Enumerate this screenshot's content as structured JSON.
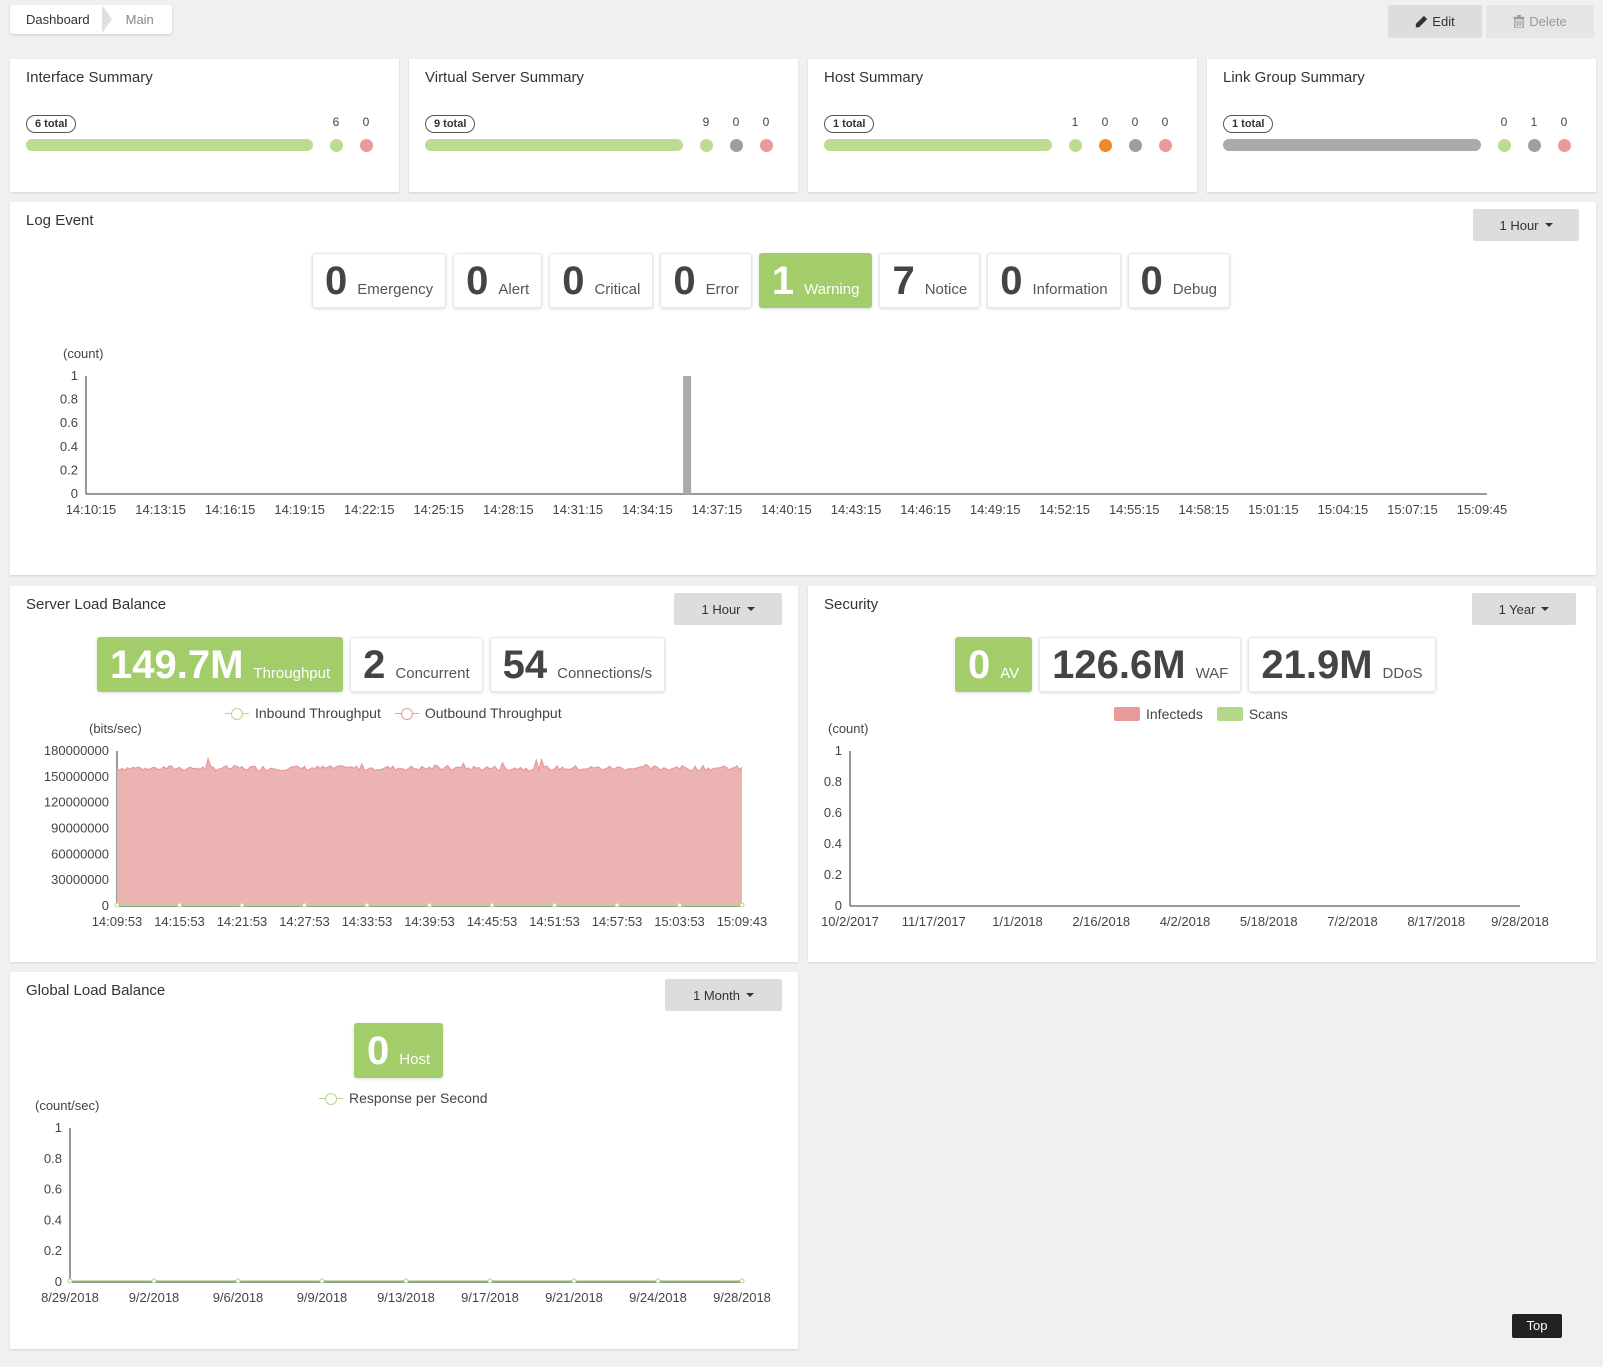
{
  "breadcrumb": {
    "home": "Dashboard",
    "current": "Main"
  },
  "toolbar": {
    "edit_label": "Edit",
    "delete_label": "Delete"
  },
  "colors": {
    "green": "#a2cd6a",
    "bar_green": "#bddc92",
    "grey": "#9e9e9e",
    "red": "#ea9a9a",
    "orange": "#f0892a"
  },
  "summaries": [
    {
      "title": "Interface Summary",
      "total": "6 total",
      "counts": [
        "6",
        "0"
      ],
      "dot_colors": [
        "green",
        "red"
      ],
      "bar_color": "green"
    },
    {
      "title": "Virtual Server Summary",
      "total": "9 total",
      "counts": [
        "9",
        "0",
        "0"
      ],
      "dot_colors": [
        "green",
        "grey",
        "red"
      ],
      "bar_color": "green"
    },
    {
      "title": "Host Summary",
      "total": "1 total",
      "counts": [
        "1",
        "0",
        "0",
        "0"
      ],
      "dot_colors": [
        "green",
        "orange",
        "grey",
        "red"
      ],
      "bar_color": "green"
    },
    {
      "title": "Link Group Summary",
      "total": "1 total",
      "counts": [
        "0",
        "1",
        "0"
      ],
      "dot_colors": [
        "green",
        "grey",
        "red"
      ],
      "bar_color": "grey"
    }
  ],
  "log_event": {
    "title": "Log Event",
    "range": "1 Hour",
    "stats": [
      {
        "value": "0",
        "label": "Emergency",
        "highlight": false
      },
      {
        "value": "0",
        "label": "Alert",
        "highlight": false
      },
      {
        "value": "0",
        "label": "Critical",
        "highlight": false
      },
      {
        "value": "0",
        "label": "Error",
        "highlight": false
      },
      {
        "value": "1",
        "label": "Warning",
        "highlight": true
      },
      {
        "value": "7",
        "label": "Notice",
        "highlight": false
      },
      {
        "value": "0",
        "label": "Information",
        "highlight": false
      },
      {
        "value": "0",
        "label": "Debug",
        "highlight": false
      }
    ]
  },
  "server_load_balance": {
    "title": "Server Load Balance",
    "range": "1 Hour",
    "stats": [
      {
        "value": "149.7M",
        "label": "Throughput",
        "highlight": true
      },
      {
        "value": "2",
        "label": "Concurrent",
        "highlight": false
      },
      {
        "value": "54",
        "label": "Connections/s",
        "highlight": false
      }
    ],
    "legend": [
      "Inbound Throughput",
      "Outbound Throughput"
    ]
  },
  "security": {
    "title": "Security",
    "range": "1 Year",
    "stats": [
      {
        "value": "0",
        "label": "AV",
        "highlight": true
      },
      {
        "value": "126.6M",
        "label": "WAF",
        "highlight": false
      },
      {
        "value": "21.9M",
        "label": "DDoS",
        "highlight": false
      }
    ],
    "legend": [
      "Infecteds",
      "Scans"
    ]
  },
  "global_load_balance": {
    "title": "Global Load Balance",
    "range": "1 Month",
    "stats": [
      {
        "value": "0",
        "label": "Host",
        "highlight": true
      }
    ],
    "legend": [
      "Response per Second"
    ]
  },
  "chart_data": [
    {
      "type": "bar",
      "ylabel": "(count)",
      "ylim": [
        0,
        1
      ],
      "yticks": [
        "0",
        "0.2",
        "0.4",
        "0.6",
        "0.8",
        "1"
      ],
      "x_ticks": [
        "14:10:15",
        "14:13:15",
        "14:16:15",
        "14:19:15",
        "14:22:15",
        "14:25:15",
        "14:28:15",
        "14:31:15",
        "14:34:15",
        "14:37:15",
        "14:40:15",
        "14:43:15",
        "14:46:15",
        "14:49:15",
        "14:52:15",
        "14:55:15",
        "14:58:15",
        "15:01:15",
        "15:04:15",
        "15:07:15",
        "15:09:45"
      ],
      "series": [
        {
          "values": [
            {
              "x": "14:35:45",
              "y": 1
            }
          ]
        }
      ],
      "bar_color": "#aaaaaa"
    },
    {
      "type": "area",
      "ylabel": "(bits/sec)",
      "ylim": [
        0,
        180000000
      ],
      "yticks": [
        "0",
        "30000000",
        "60000000",
        "90000000",
        "120000000",
        "150000000",
        "180000000"
      ],
      "x_ticks": [
        "14:09:53",
        "14:15:53",
        "14:21:53",
        "14:27:53",
        "14:33:53",
        "14:39:53",
        "14:45:53",
        "14:51:53",
        "14:57:53",
        "15:03:53",
        "15:09:43"
      ],
      "series": [
        {
          "name": "Inbound Throughput",
          "approx_value": 0,
          "color": "#b3d88a"
        },
        {
          "name": "Outbound Throughput",
          "approx_value": 160000000,
          "range": [
            155000000,
            173000000
          ],
          "color": "#e89a9a"
        }
      ]
    },
    {
      "type": "area",
      "ylabel": "(count)",
      "ylim": [
        0,
        1
      ],
      "yticks": [
        "0",
        "0.2",
        "0.4",
        "0.6",
        "0.8",
        "1"
      ],
      "x_ticks": [
        "10/2/2017",
        "11/17/2017",
        "1/1/2018",
        "2/16/2018",
        "4/2/2018",
        "5/18/2018",
        "7/2/2018",
        "8/17/2018",
        "9/28/2018"
      ],
      "series": [
        {
          "name": "Infecteds",
          "values": [],
          "color": "#e89a9a"
        },
        {
          "name": "Scans",
          "values": [],
          "color": "#b3d88a"
        }
      ]
    },
    {
      "type": "line",
      "ylabel": "(count/sec)",
      "ylim": [
        0,
        1
      ],
      "yticks": [
        "0",
        "0.2",
        "0.4",
        "0.6",
        "0.8",
        "1"
      ],
      "x_ticks": [
        "8/29/2018",
        "9/2/2018",
        "9/6/2018",
        "9/9/2018",
        "9/13/2018",
        "9/17/2018",
        "9/21/2018",
        "9/24/2018",
        "9/28/2018"
      ],
      "series": [
        {
          "name": "Response per Second",
          "values": [
            0,
            0,
            0,
            0,
            0,
            0,
            0,
            0,
            0
          ],
          "color": "#b3d88a"
        }
      ]
    }
  ],
  "footer": {
    "top_label": "Top"
  }
}
